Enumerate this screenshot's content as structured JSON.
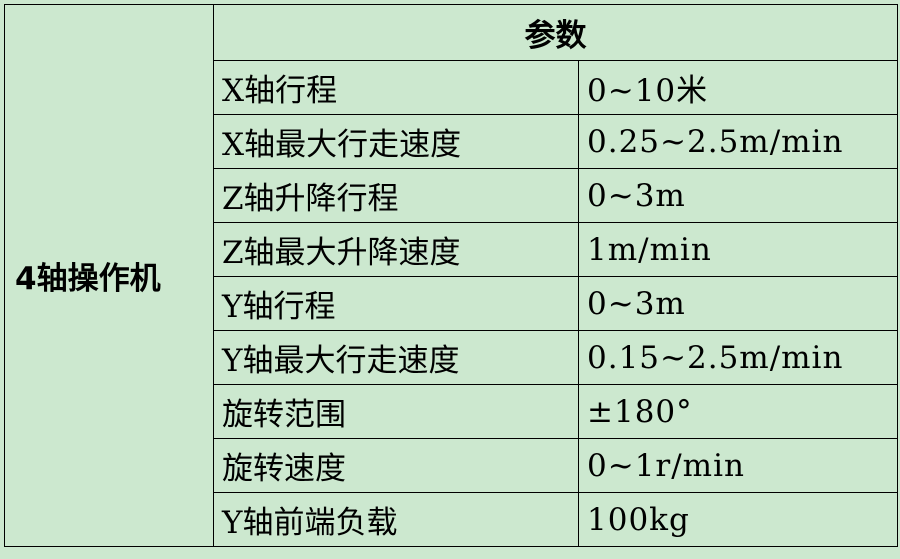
{
  "header": {
    "parameters": "参数"
  },
  "group_label": "4轴操作机",
  "rows": [
    {
      "name": "X轴行程",
      "value": "0~10米"
    },
    {
      "name": "X轴最大行走速度",
      "value": "0.25~2.5m/min"
    },
    {
      "name": "Z轴升降行程",
      "value": "0~3m"
    },
    {
      "name": "Z轴最大升降速度",
      "value": "1m/min"
    },
    {
      "name": "Y轴行程",
      "value": "0~3m"
    },
    {
      "name": "Y轴最大行走速度",
      "value": "0.15~2.5m/min"
    },
    {
      "name": "旋转范围",
      "value": "±180°"
    },
    {
      "name": "旋转速度",
      "value": "0~1r/min"
    },
    {
      "name": "Y轴前端负载",
      "value": "100kg"
    }
  ],
  "colors": {
    "background": "#cce8cf",
    "border": "#000000"
  }
}
